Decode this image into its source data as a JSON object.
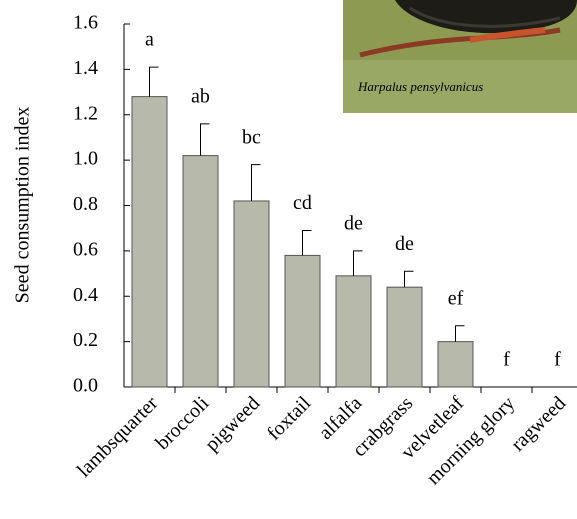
{
  "chart_data": {
    "type": "bar",
    "y_label": "Seed consumption index",
    "categories": [
      "lambsquarter",
      "broccoli",
      "pigweed",
      "foxtail",
      "alfalfa",
      "crabgrass",
      "velvetleaf",
      "morning glory",
      "ragweed"
    ],
    "values": [
      1.28,
      1.02,
      0.82,
      0.58,
      0.49,
      0.44,
      0.2,
      0,
      0
    ],
    "errors": [
      0.13,
      0.14,
      0.16,
      0.11,
      0.11,
      0.07,
      0.07,
      null,
      null
    ],
    "annotations": [
      "a",
      "ab",
      "bc",
      "cd",
      "de",
      "de",
      "ef",
      "f",
      "f"
    ],
    "color": "#b7b9aa",
    "ylim": [
      0,
      1.6
    ],
    "yticks": [
      {
        "value": 0,
        "label": "0.0"
      },
      {
        "value": 0.2,
        "label": "0.2"
      },
      {
        "value": 0.4,
        "label": "0.4"
      },
      {
        "value": 0.6,
        "label": "0.6"
      },
      {
        "value": 0.8,
        "label": "0.8"
      },
      {
        "value": 1,
        "label": "1.0"
      },
      {
        "value": 1.2,
        "label": "1.2"
      },
      {
        "value": 1.4,
        "label": "1.4"
      },
      {
        "value": 1.6,
        "label": "1.6"
      }
    ],
    "inset_caption": "Harpalus pensylvanicus"
  }
}
